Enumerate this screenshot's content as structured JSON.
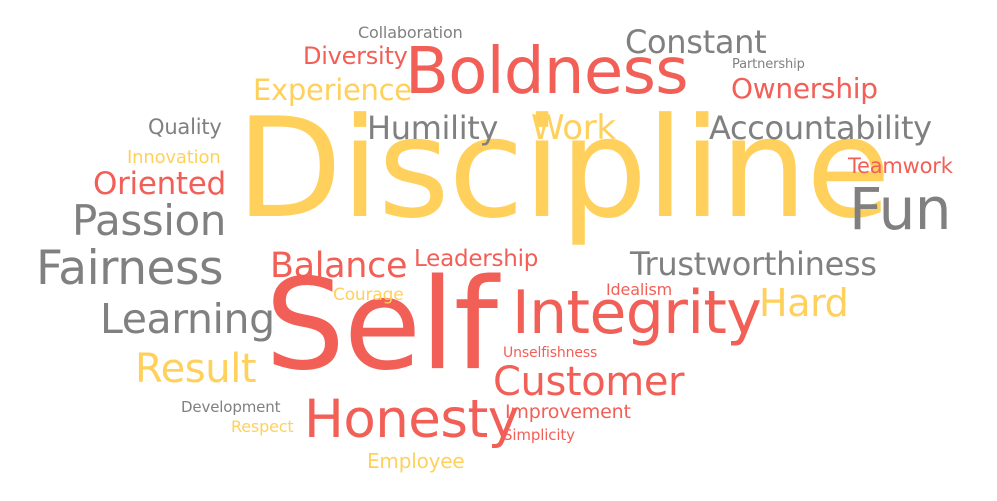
{
  "words": [
    {
      "text": "Discipline",
      "color": "#FFD15C"
    },
    {
      "text": "Self",
      "color": "#F25F57"
    },
    {
      "text": "Boldness",
      "color": "#F25F57"
    },
    {
      "text": "Integrity",
      "color": "#F25F57"
    },
    {
      "text": "Fun",
      "color": "#808080"
    },
    {
      "text": "Honesty",
      "color": "#F25F57"
    },
    {
      "text": "Fairness",
      "color": "#808080"
    },
    {
      "text": "Customer",
      "color": "#F25F57"
    },
    {
      "text": "Passion",
      "color": "#808080"
    },
    {
      "text": "Learning",
      "color": "#808080"
    },
    {
      "text": "Trustworthiness",
      "color": "#808080"
    },
    {
      "text": "Result",
      "color": "#FFD15C"
    },
    {
      "text": "Work",
      "color": "#FFD15C"
    },
    {
      "text": "Constant",
      "color": "#808080"
    },
    {
      "text": "Balance",
      "color": "#F25F57"
    },
    {
      "text": "Hard",
      "color": "#FFD15C"
    },
    {
      "text": "Accountability",
      "color": "#808080"
    },
    {
      "text": "Humility",
      "color": "#808080"
    },
    {
      "text": "Experience",
      "color": "#FFD15C"
    },
    {
      "text": "Oriented",
      "color": "#F25F57"
    },
    {
      "text": "Ownership",
      "color": "#F25F57"
    },
    {
      "text": "Diversity",
      "color": "#F25F57"
    },
    {
      "text": "Leadership",
      "color": "#F25F57"
    },
    {
      "text": "Quality",
      "color": "#808080"
    },
    {
      "text": "Teamwork",
      "color": "#F25F57"
    },
    {
      "text": "Employee",
      "color": "#FFD15C"
    },
    {
      "text": "Improvement",
      "color": "#F25F57"
    },
    {
      "text": "Innovation",
      "color": "#FFD15C"
    },
    {
      "text": "Collaboration",
      "color": "#808080"
    },
    {
      "text": "Courage",
      "color": "#FFD15C"
    },
    {
      "text": "Idealism",
      "color": "#F25F57"
    },
    {
      "text": "Respect",
      "color": "#FFD15C"
    },
    {
      "text": "Development",
      "color": "#808080"
    },
    {
      "text": "Simplicity",
      "color": "#F25F57"
    },
    {
      "text": "Unselfishness",
      "color": "#F25F57"
    },
    {
      "text": "Partnership",
      "color": "#808080"
    }
  ]
}
